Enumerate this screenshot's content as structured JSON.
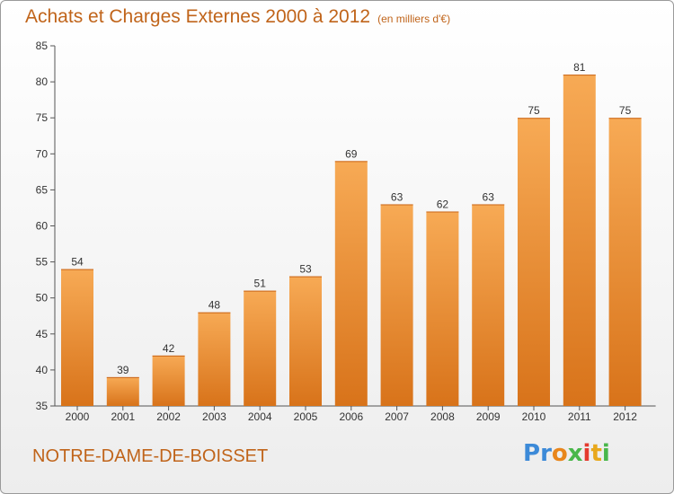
{
  "title": "Achats et Charges Externes 2000 à 2012",
  "subtitle": "(en milliers d'€)",
  "location": "NOTRE-DAME-DE-BOISSET",
  "logo": {
    "text": "Proxiti",
    "letters": [
      "P",
      "r",
      "o",
      "x",
      "i",
      "t",
      "i"
    ],
    "colors": [
      "#3c8ad8",
      "#3c8ad8",
      "#e8861c",
      "#49b74a",
      "#e43a2e",
      "#e8a81c",
      "#49b74a"
    ]
  },
  "colors": {
    "bar": "#f0963a",
    "bar_light": "#f6a855",
    "bar_dark": "#d9771c",
    "accent": "#c0641a"
  },
  "chart_data": {
    "type": "bar",
    "categories": [
      "2000",
      "2001",
      "2002",
      "2003",
      "2004",
      "2005",
      "2006",
      "2007",
      "2008",
      "2009",
      "2010",
      "2011",
      "2012"
    ],
    "values": [
      54,
      39,
      42,
      48,
      51,
      53,
      69,
      63,
      62,
      63,
      75,
      81,
      75
    ],
    "value_labels": [
      "54",
      "39",
      "42",
      "48",
      "51",
      "53",
      "69",
      "63",
      "62",
      "63",
      "75",
      "81",
      "75"
    ],
    "ylim": [
      35,
      85
    ],
    "yticks": [
      "35",
      "40",
      "45",
      "50",
      "55",
      "60",
      "65",
      "70",
      "75",
      "80",
      "85"
    ],
    "grid": false
  }
}
